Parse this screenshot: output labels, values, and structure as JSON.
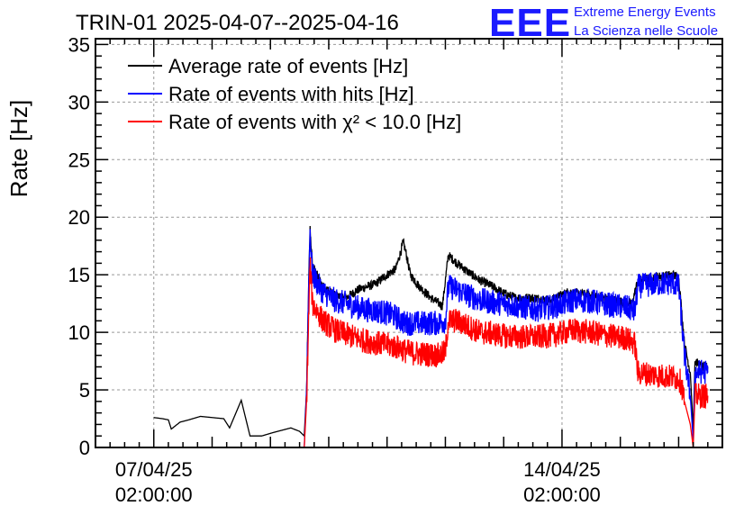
{
  "logo": {
    "mark": "EEE",
    "line1": "Extreme Energy Events",
    "line2": "La Scienza nelle Scuole",
    "color": "#1a1aff"
  },
  "chart_data": {
    "type": "line",
    "title": "TRIN-01 2025-04-07--2025-04-16",
    "xlabel": "",
    "ylabel": "Rate [Hz]",
    "x_unit": "days since 07/04/25 02:00:00",
    "xlim": [
      -1.0,
      9.75
    ],
    "ylim": [
      0,
      35.5
    ],
    "yticks": [
      0,
      5,
      10,
      15,
      20,
      25,
      30,
      35
    ],
    "xticks": [
      {
        "x": 0,
        "line1": "07/04/25",
        "line2": "02:00:00"
      },
      {
        "x": 7,
        "line1": "14/04/25",
        "line2": "02:00:00"
      }
    ],
    "grid": true,
    "legend_position": "top-left",
    "series": [
      {
        "name": "Average rate of events [Hz]",
        "color": "#000000",
        "points": [
          [
            0.0,
            2.6
          ],
          [
            0.15,
            2.5
          ],
          [
            0.25,
            2.4
          ],
          [
            0.3,
            1.6
          ],
          [
            0.45,
            2.2
          ],
          [
            0.6,
            2.4
          ],
          [
            0.8,
            2.7
          ],
          [
            1.0,
            2.6
          ],
          [
            1.2,
            2.5
          ],
          [
            1.3,
            1.7
          ],
          [
            1.5,
            4.1
          ],
          [
            1.65,
            1.0
          ],
          [
            1.85,
            1.0
          ],
          [
            2.05,
            1.3
          ],
          [
            2.35,
            1.7
          ],
          [
            2.5,
            1.4
          ],
          [
            2.58,
            1.0
          ],
          [
            2.62,
            5.0
          ],
          [
            2.66,
            15.0
          ],
          [
            2.68,
            19.0
          ],
          [
            2.72,
            15.8
          ],
          [
            2.9,
            14.0
          ],
          [
            3.1,
            13.2
          ],
          [
            3.3,
            13.0
          ],
          [
            3.5,
            13.7
          ],
          [
            3.8,
            14.2
          ],
          [
            4.0,
            15.0
          ],
          [
            4.15,
            15.5
          ],
          [
            4.28,
            17.8
          ],
          [
            4.32,
            17.0
          ],
          [
            4.4,
            15.0
          ],
          [
            4.55,
            14.0
          ],
          [
            4.75,
            13.0
          ],
          [
            4.95,
            12.3
          ],
          [
            5.05,
            16.7
          ],
          [
            5.2,
            16.0
          ],
          [
            5.4,
            15.2
          ],
          [
            5.6,
            14.5
          ],
          [
            5.8,
            14.0
          ],
          [
            6.0,
            13.4
          ],
          [
            6.2,
            13.0
          ],
          [
            6.5,
            13.0
          ],
          [
            6.8,
            12.8
          ],
          [
            7.1,
            13.5
          ],
          [
            7.4,
            13.3
          ],
          [
            7.7,
            13.0
          ],
          [
            8.0,
            12.7
          ],
          [
            8.2,
            12.5
          ],
          [
            8.3,
            14.5
          ],
          [
            8.6,
            14.8
          ],
          [
            8.9,
            15.0
          ],
          [
            9.0,
            14.8
          ],
          [
            9.05,
            12.0
          ],
          [
            9.1,
            9.0
          ],
          [
            9.2,
            6.5
          ],
          [
            9.25,
            1.5
          ],
          [
            9.28,
            7.5
          ],
          [
            9.4,
            7.0
          ],
          [
            9.5,
            7.0
          ]
        ]
      },
      {
        "name": "Rate of events with hits [Hz]",
        "color": "#0000ff",
        "points": [
          [
            0.0,
            0.0
          ],
          [
            2.58,
            0.0
          ],
          [
            2.62,
            5.0
          ],
          [
            2.66,
            15.0
          ],
          [
            2.68,
            18.8
          ],
          [
            2.72,
            15.0
          ],
          [
            2.9,
            13.5
          ],
          [
            3.1,
            12.8
          ],
          [
            3.3,
            12.5
          ],
          [
            3.6,
            12.0
          ],
          [
            3.9,
            11.8
          ],
          [
            4.1,
            11.5
          ],
          [
            4.25,
            11.0
          ],
          [
            4.3,
            10.8
          ],
          [
            4.45,
            10.8
          ],
          [
            4.9,
            10.8
          ],
          [
            5.0,
            11.0
          ],
          [
            5.05,
            14.0
          ],
          [
            5.2,
            13.7
          ],
          [
            5.4,
            13.2
          ],
          [
            5.6,
            12.8
          ],
          [
            5.8,
            12.6
          ],
          [
            6.0,
            12.5
          ],
          [
            6.3,
            12.2
          ],
          [
            6.6,
            12.0
          ],
          [
            6.9,
            12.3
          ],
          [
            7.2,
            12.8
          ],
          [
            7.5,
            12.7
          ],
          [
            7.8,
            12.4
          ],
          [
            8.1,
            12.2
          ],
          [
            8.25,
            11.8
          ],
          [
            8.3,
            14.0
          ],
          [
            8.6,
            14.2
          ],
          [
            8.9,
            14.3
          ],
          [
            9.0,
            14.0
          ],
          [
            9.05,
            11.0
          ],
          [
            9.1,
            8.0
          ],
          [
            9.2,
            4.5
          ],
          [
            9.25,
            0.5
          ],
          [
            9.28,
            6.5
          ],
          [
            9.4,
            6.6
          ],
          [
            9.5,
            6.5
          ]
        ]
      },
      {
        "name": "Rate of events with χ² < 10.0 [Hz]",
        "color": "#ff0000",
        "points": [
          [
            0.0,
            0.0
          ],
          [
            2.58,
            0.0
          ],
          [
            2.62,
            4.0
          ],
          [
            2.66,
            12.0
          ],
          [
            2.68,
            16.0
          ],
          [
            2.72,
            12.5
          ],
          [
            2.9,
            11.0
          ],
          [
            3.1,
            10.2
          ],
          [
            3.3,
            9.8
          ],
          [
            3.6,
            9.3
          ],
          [
            3.9,
            9.0
          ],
          [
            4.1,
            8.8
          ],
          [
            4.25,
            8.6
          ],
          [
            4.3,
            8.4
          ],
          [
            4.45,
            8.2
          ],
          [
            4.9,
            8.0
          ],
          [
            5.0,
            8.3
          ],
          [
            5.05,
            11.0
          ],
          [
            5.2,
            11.0
          ],
          [
            5.4,
            10.5
          ],
          [
            5.6,
            10.0
          ],
          [
            5.8,
            9.9
          ],
          [
            6.0,
            9.7
          ],
          [
            6.3,
            9.6
          ],
          [
            6.6,
            9.6
          ],
          [
            6.9,
            9.8
          ],
          [
            7.2,
            10.2
          ],
          [
            7.5,
            10.0
          ],
          [
            7.8,
            9.7
          ],
          [
            8.1,
            9.5
          ],
          [
            8.25,
            9.0
          ],
          [
            8.3,
            6.5
          ],
          [
            8.6,
            6.3
          ],
          [
            8.9,
            6.1
          ],
          [
            9.0,
            6.0
          ],
          [
            9.05,
            5.5
          ],
          [
            9.1,
            4.0
          ],
          [
            9.2,
            2.0
          ],
          [
            9.25,
            0.0
          ],
          [
            9.28,
            4.5
          ],
          [
            9.4,
            4.5
          ],
          [
            9.5,
            4.5
          ]
        ]
      }
    ]
  }
}
